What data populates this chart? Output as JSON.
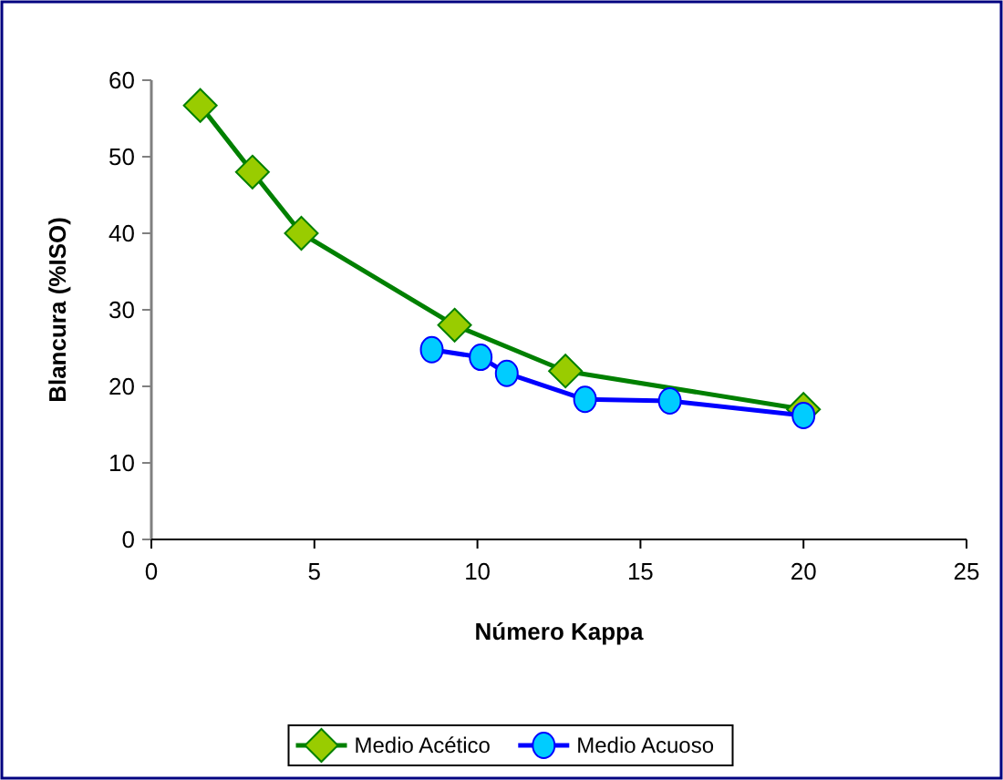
{
  "chart_data": {
    "type": "line",
    "xlabel": "Número Kappa",
    "ylabel": "Blancura (%ISO)",
    "xlim": [
      0,
      25
    ],
    "xticks": [
      0,
      5,
      10,
      15,
      20,
      25
    ],
    "ylim": [
      0,
      60
    ],
    "yticks": [
      0,
      10,
      20,
      30,
      40,
      50,
      60
    ],
    "grid": false,
    "legend": "bottom",
    "series": [
      {
        "name": "Medio Acético",
        "color": "#008000",
        "marker": "diamond",
        "x": [
          1.5,
          3.1,
          4.6,
          9.3,
          12.7,
          20
        ],
        "values": [
          56.7,
          48,
          40,
          28,
          22,
          17
        ]
      },
      {
        "name": "Medio Acuoso",
        "color": "#0000ff",
        "marker": "circle",
        "x": [
          8.6,
          10.1,
          10.9,
          13.3,
          15.9,
          20
        ],
        "values": [
          24.8,
          23.8,
          21.7,
          18.3,
          18.1,
          16.2
        ]
      }
    ]
  }
}
